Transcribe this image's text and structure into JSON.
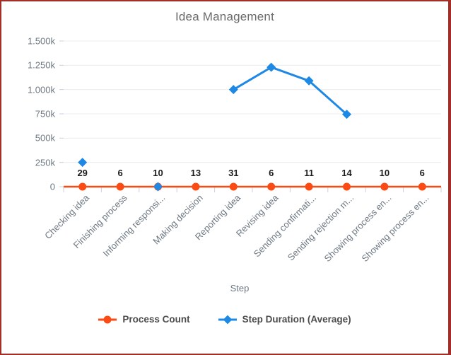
{
  "window": {
    "background": "#ffffff",
    "border_color": "#a12f28"
  },
  "colors": {
    "title_text": "#6a6a6a",
    "axis_text": "#6e7882",
    "data_label_text": "#1c1c1c",
    "legend_text": "#4c4c4c",
    "gridline": "#ececec",
    "tick": "#c8d1e0",
    "axis_line": "#e0e4ea",
    "series_orange": "#fb4a14",
    "series_blue": "#1e88e5"
  },
  "chart_data": {
    "type": "line",
    "title": "Idea Management",
    "xlabel": "Step",
    "categories": [
      "Checking idea",
      "Finishing process",
      "Informing responsi...",
      "Making decision",
      "Reporting idea",
      "Revising idea",
      "Sending confirmati...",
      "Sending rejection m...",
      "Showing process en...",
      "Showing process en..."
    ],
    "series": [
      {
        "name": "Process Count",
        "color": "#fb4a14",
        "marker": "circle",
        "show_data_labels": true,
        "values": [
          29,
          6,
          10,
          13,
          31,
          6,
          11,
          14,
          10,
          6
        ]
      },
      {
        "name": "Step Duration (Average)",
        "color": "#1e88e5",
        "marker": "diamond",
        "show_data_labels": false,
        "values": [
          250000,
          null,
          0,
          null,
          1000000,
          1230000,
          1090000,
          745000,
          null,
          null
        ]
      }
    ],
    "y_axis": {
      "min": 0,
      "max": 1500000,
      "tick_interval": 250000,
      "tick_labels": [
        "0",
        "250k",
        "500k",
        "750k",
        "1.000k",
        "1.250k",
        "1.500k"
      ]
    },
    "legend_position": "bottom",
    "grid": "horizontal"
  }
}
